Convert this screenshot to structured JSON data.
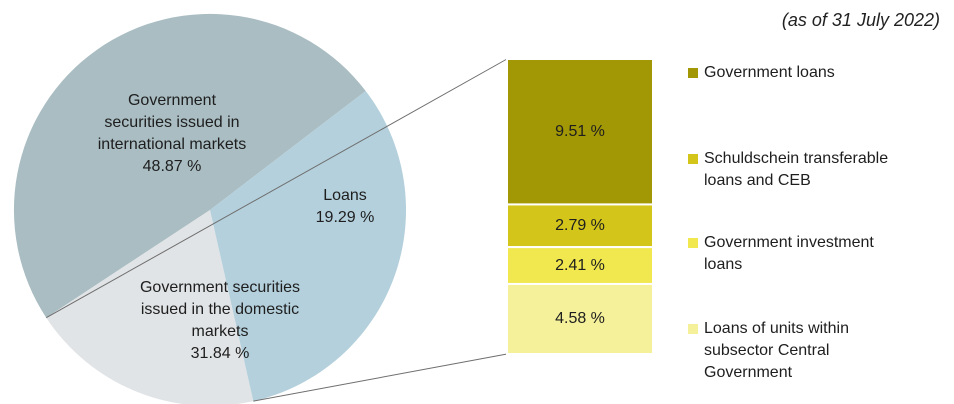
{
  "date_note": "(as of 31 July 2022)",
  "chart_data": {
    "type": "pie",
    "pie": {
      "slices": [
        {
          "label_lines": [
            "Government",
            "securities issued in",
            "international markets"
          ],
          "value": 48.87,
          "value_label": "48.87 %",
          "color": "#a9bdc2"
        },
        {
          "label_lines": [
            "Loans"
          ],
          "value": 19.29,
          "value_label": "19.29 %",
          "color": "#e1e4e6"
        },
        {
          "label_lines": [
            "Government securities",
            "issued in the domestic",
            "markets"
          ],
          "value": 31.84,
          "value_label": "31.84 %",
          "color": "#b4d0dc"
        }
      ]
    },
    "breakdown_bar": {
      "of_slice": "Loans",
      "segments": [
        {
          "name": "Government loans",
          "value": 9.51,
          "value_label": "9.51 %",
          "color": "#a29705"
        },
        {
          "name": "Schuldschein transferable loans and CEB",
          "value": 2.79,
          "value_label": "2.79 %",
          "color": "#d3c51a"
        },
        {
          "name": "Government investment loans",
          "value": 2.41,
          "value_label": "2.41 %",
          "color": "#f0e84e"
        },
        {
          "name": "Loans of units within subsector Central Government",
          "value": 4.58,
          "value_label": "4.58 %",
          "color": "#f5f09a"
        }
      ]
    },
    "legend": {
      "placement": "right",
      "items": [
        {
          "lines": [
            "Government loans"
          ],
          "color": "#a29705"
        },
        {
          "lines": [
            "Schuldschein transferable",
            "loans and CEB"
          ],
          "color": "#d3c51a"
        },
        {
          "lines": [
            "Government investment",
            "loans"
          ],
          "color": "#f0e84e"
        },
        {
          "lines": [
            "Loans of units within",
            "subsector Central",
            "Government"
          ],
          "color": "#f5f09a"
        }
      ]
    }
  }
}
